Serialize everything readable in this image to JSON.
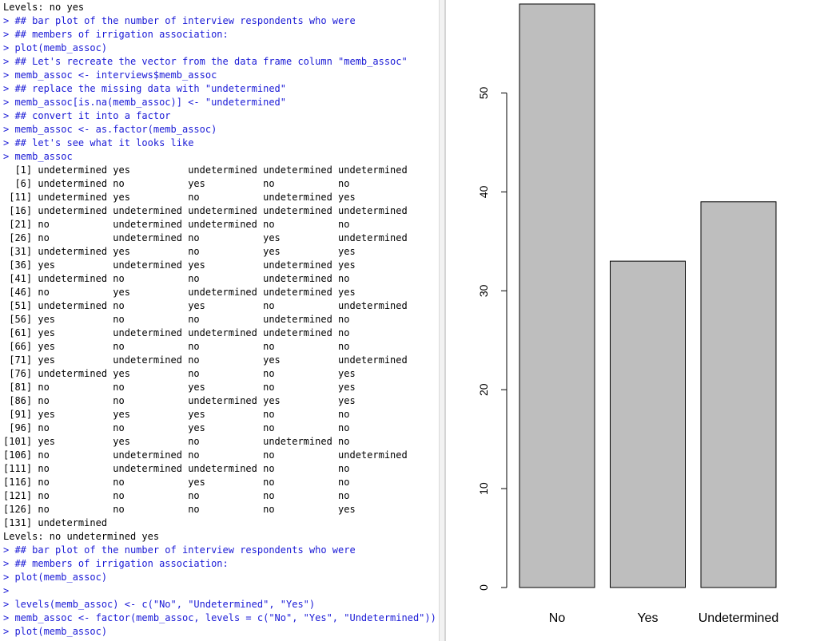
{
  "console": {
    "lines": [
      {
        "type": "output",
        "text": "Levels: no yes"
      },
      {
        "type": "input",
        "text": "> ## bar plot of the number of interview respondents who were"
      },
      {
        "type": "input",
        "text": "> ## members of irrigation association:"
      },
      {
        "type": "input",
        "text": "> plot(memb_assoc)"
      },
      {
        "type": "input",
        "text": "> ## Let's recreate the vector from the data frame column \"memb_assoc\""
      },
      {
        "type": "input",
        "text": "> memb_assoc <- interviews$memb_assoc"
      },
      {
        "type": "input",
        "text": "> ## replace the missing data with \"undetermined\""
      },
      {
        "type": "input",
        "text": "> memb_assoc[is.na(memb_assoc)] <- \"undetermined\""
      },
      {
        "type": "input",
        "text": "> ## convert it into a factor"
      },
      {
        "type": "input",
        "text": "> memb_assoc <- as.factor(memb_assoc)"
      },
      {
        "type": "input",
        "text": "> ## let's see what it looks like"
      },
      {
        "type": "input",
        "text": "> memb_assoc"
      },
      {
        "type": "output",
        "text": "  [1] undetermined yes          undetermined undetermined undetermined"
      },
      {
        "type": "output",
        "text": "  [6] undetermined no           yes          no           no"
      },
      {
        "type": "output",
        "text": " [11] undetermined yes          no           undetermined yes"
      },
      {
        "type": "output",
        "text": " [16] undetermined undetermined undetermined undetermined undetermined"
      },
      {
        "type": "output",
        "text": " [21] no           undetermined undetermined no           no"
      },
      {
        "type": "output",
        "text": " [26] no           undetermined no           yes          undetermined"
      },
      {
        "type": "output",
        "text": " [31] undetermined yes          no           yes          yes"
      },
      {
        "type": "output",
        "text": " [36] yes          undetermined yes          undetermined yes"
      },
      {
        "type": "output",
        "text": " [41] undetermined no           no           undetermined no"
      },
      {
        "type": "output",
        "text": " [46] no           yes          undetermined undetermined yes"
      },
      {
        "type": "output",
        "text": " [51] undetermined no           yes          no           undetermined"
      },
      {
        "type": "output",
        "text": " [56] yes          no           no           undetermined no"
      },
      {
        "type": "output",
        "text": " [61] yes          undetermined undetermined undetermined no"
      },
      {
        "type": "output",
        "text": " [66] yes          no           no           no           no"
      },
      {
        "type": "output",
        "text": " [71] yes          undetermined no           yes          undetermined"
      },
      {
        "type": "output",
        "text": " [76] undetermined yes          no           no           yes"
      },
      {
        "type": "output",
        "text": " [81] no           no           yes          no           yes"
      },
      {
        "type": "output",
        "text": " [86] no           no           undetermined yes          yes"
      },
      {
        "type": "output",
        "text": " [91] yes          yes          yes          no           no"
      },
      {
        "type": "output",
        "text": " [96] no           no           yes          no           no"
      },
      {
        "type": "output",
        "text": "[101] yes          yes          no           undetermined no"
      },
      {
        "type": "output",
        "text": "[106] no           undetermined no           no           undetermined"
      },
      {
        "type": "output",
        "text": "[111] no           undetermined undetermined no           no"
      },
      {
        "type": "output",
        "text": "[116] no           no           yes          no           no"
      },
      {
        "type": "output",
        "text": "[121] no           no           no           no           no"
      },
      {
        "type": "output",
        "text": "[126] no           no           no           no           yes"
      },
      {
        "type": "output",
        "text": "[131] undetermined"
      },
      {
        "type": "output",
        "text": "Levels: no undetermined yes"
      },
      {
        "type": "input",
        "text": "> ## bar plot of the number of interview respondents who were"
      },
      {
        "type": "input",
        "text": "> ## members of irrigation association:"
      },
      {
        "type": "input",
        "text": "> plot(memb_assoc)"
      },
      {
        "type": "input",
        "text": ">"
      },
      {
        "type": "input",
        "text": "> levels(memb_assoc) <- c(\"No\", \"Undetermined\", \"Yes\")"
      },
      {
        "type": "input",
        "text": "> memb_assoc <- factor(memb_assoc, levels = c(\"No\", \"Yes\", \"Undetermined\"))"
      },
      {
        "type": "input",
        "text": "> plot(memb_assoc)"
      }
    ]
  },
  "colors": {
    "console_input": "#1a1ad6",
    "console_output": "#000000",
    "bar_fill": "#bebebe",
    "bar_stroke": "#000000"
  },
  "chart_data": {
    "type": "bar",
    "categories": [
      "No",
      "Yes",
      "Undetermined"
    ],
    "values": [
      59,
      33,
      39
    ],
    "ylim": [
      0,
      59
    ],
    "yticks": [
      0,
      10,
      20,
      30,
      40,
      50
    ],
    "title": "",
    "xlabel": "",
    "ylabel": "",
    "grid": false
  }
}
